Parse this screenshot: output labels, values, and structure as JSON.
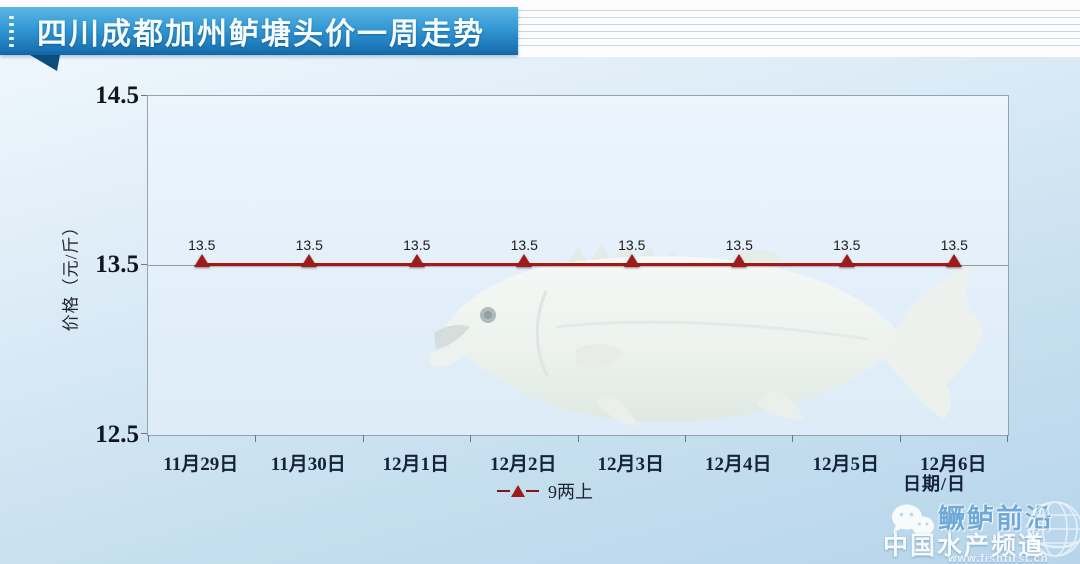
{
  "banner": {
    "title": "四川成都加州鲈塘头价一周走势"
  },
  "chart_data": {
    "type": "line",
    "title": "四川成都加州鲈塘头价一周走势",
    "categories": [
      "11月29日",
      "11月30日",
      "12月1日",
      "12月2日",
      "12月3日",
      "12月4日",
      "12月5日",
      "12月6日"
    ],
    "series": [
      {
        "name": "9两上",
        "values": [
          13.5,
          13.5,
          13.5,
          13.5,
          13.5,
          13.5,
          13.5,
          13.5
        ],
        "color": "#a01a1a",
        "marker": "triangle-up"
      }
    ],
    "point_label_format": "13.5",
    "ylabel": "价格（元/斤）",
    "xlabel": "日期/日",
    "ylim": [
      12.5,
      14.5
    ],
    "yticks": [
      "14.5",
      "13.5",
      "12.5"
    ],
    "grid": "horizontal-at-13.5",
    "legend_position": "bottom-center"
  },
  "legend": {
    "label": "9两上",
    "marker_color": "#9e1b1b"
  },
  "watermark": {
    "wechat_icon": "wechat-icon",
    "brand_line1": "鳜鲈前沿",
    "brand_line2": "中国水产频道",
    "url": "www.fishfirst.cn",
    "globe_icon": "globe-icon",
    "brand_blue": "#6ea9d8"
  },
  "colors": {
    "banner_blue_top": "#5cb6e4",
    "banner_blue_bottom": "#1266a4",
    "line_red": "#a01a1a",
    "axis_text": "#15223b"
  }
}
